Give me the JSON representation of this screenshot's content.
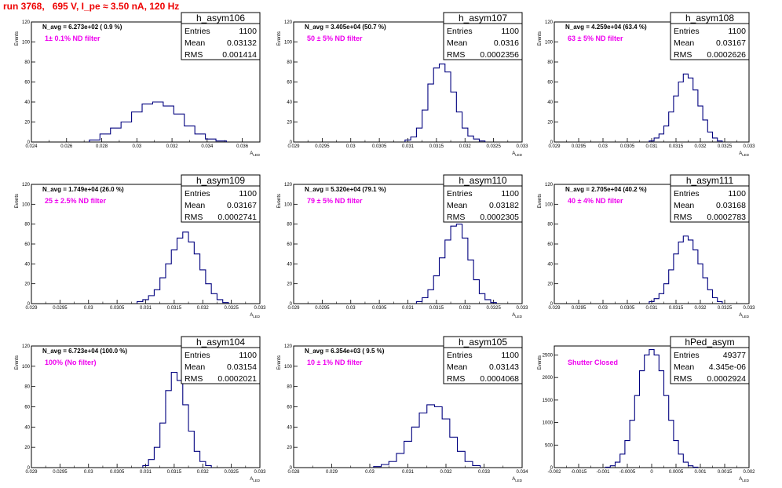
{
  "header": {
    "run_info": "run 3768,   695 V, I_pe ≈ 3.50 nA, 120 Hz"
  },
  "colors": {
    "histogram_line": "#00007f",
    "filter_text": "#ee00ee",
    "run_text": "#ee0000"
  },
  "chart_data": [
    {
      "type": "bar",
      "name": "h_asym106",
      "navg": "N_avg = 6.273e+02 ( 0.9 %)",
      "filter": "1± 0.1% ND filter",
      "xlabel": "A_LED",
      "ylabel": "Events",
      "xlim": [
        0.024,
        0.037
      ],
      "ylim": [
        0,
        120
      ],
      "x_ticks": [
        "0.024",
        "0.026",
        "0.028",
        "0.03",
        "0.032",
        "0.034",
        "0.036"
      ],
      "y_ticks": [
        "0",
        "20",
        "40",
        "60",
        "80",
        "100",
        "120"
      ],
      "stats": {
        "Entries": "1100",
        "Mean": "0.03132",
        "RMS": "0.001414"
      },
      "x": [
        0.0276,
        0.0282,
        0.0288,
        0.0294,
        0.03,
        0.0306,
        0.0312,
        0.0318,
        0.0324,
        0.033,
        0.0336,
        0.0342,
        0.0348
      ],
      "values": [
        2,
        8,
        14,
        20,
        30,
        38,
        40,
        36,
        28,
        16,
        8,
        3,
        1
      ]
    },
    {
      "type": "bar",
      "name": "h_asym107",
      "navg": "N_avg = 3.405e+04 (50.7 %)",
      "filter": "50 ± 5% ND filter",
      "xlabel": "A_LED",
      "ylabel": "Events",
      "xlim": [
        0.029,
        0.033
      ],
      "ylim": [
        0,
        120
      ],
      "x_ticks": [
        "0.029",
        "0.0295",
        "0.03",
        "0.0305",
        "0.031",
        "0.0315",
        "0.032",
        "0.0325",
        "0.033"
      ],
      "y_ticks": [
        "0",
        "20",
        "40",
        "60",
        "80",
        "100",
        "120"
      ],
      "stats": {
        "Entries": "1100",
        "Mean": "0.0316",
        "RMS": "0.0002356"
      },
      "x": [
        0.031,
        0.0311,
        0.0312,
        0.0313,
        0.0314,
        0.0315,
        0.0316,
        0.0317,
        0.0318,
        0.0319,
        0.032,
        0.0321,
        0.0322,
        0.0323
      ],
      "values": [
        2,
        5,
        14,
        32,
        58,
        74,
        78,
        70,
        50,
        30,
        14,
        6,
        3,
        1
      ]
    },
    {
      "type": "bar",
      "name": "h_asym108",
      "navg": "N_avg = 4.259e+04 (63.4 %)",
      "filter": "63 ± 5% ND filter",
      "xlabel": "A_LED",
      "ylabel": "Events",
      "xlim": [
        0.029,
        0.033
      ],
      "ylim": [
        0,
        120
      ],
      "x_ticks": [
        "0.029",
        "0.0295",
        "0.03",
        "0.0305",
        "0.031",
        "0.0315",
        "0.032",
        "0.0325",
        "0.033"
      ],
      "y_ticks": [
        "0",
        "20",
        "40",
        "60",
        "80",
        "100",
        "120"
      ],
      "stats": {
        "Entries": "1100",
        "Mean": "0.03167",
        "RMS": "0.0002626"
      },
      "x": [
        0.031,
        0.0311,
        0.0312,
        0.0313,
        0.0314,
        0.0315,
        0.0316,
        0.0317,
        0.0318,
        0.0319,
        0.032,
        0.0321,
        0.0322,
        0.0323,
        0.0324
      ],
      "values": [
        1,
        4,
        8,
        16,
        30,
        46,
        60,
        68,
        64,
        52,
        36,
        22,
        10,
        4,
        1
      ]
    },
    {
      "type": "bar",
      "name": "h_asym109",
      "navg": "N_avg = 1.749e+04 (26.0 %)",
      "filter": "25 ± 2.5% ND filter",
      "xlabel": "A_LED",
      "ylabel": "Events",
      "xlim": [
        0.029,
        0.033
      ],
      "ylim": [
        0,
        120
      ],
      "x_ticks": [
        "0.029",
        "0.0295",
        "0.03",
        "0.0305",
        "0.031",
        "0.0315",
        "0.032",
        "0.0325",
        "0.033"
      ],
      "y_ticks": [
        "0",
        "20",
        "40",
        "60",
        "80",
        "100",
        "120"
      ],
      "stats": {
        "Entries": "1100",
        "Mean": "0.03167",
        "RMS": "0.0002741"
      },
      "x": [
        0.0309,
        0.031,
        0.0311,
        0.0312,
        0.0313,
        0.0314,
        0.0315,
        0.0316,
        0.0317,
        0.0318,
        0.0319,
        0.032,
        0.0321,
        0.0322,
        0.0323,
        0.0324
      ],
      "values": [
        2,
        4,
        8,
        14,
        26,
        40,
        54,
        66,
        72,
        62,
        50,
        34,
        20,
        10,
        4,
        1
      ]
    },
    {
      "type": "bar",
      "name": "h_asym110",
      "navg": "N_avg = 5.320e+04 (79.1 %)",
      "filter": "79 ± 5% ND filter",
      "xlabel": "A_LED",
      "ylabel": "Events",
      "xlim": [
        0.029,
        0.033
      ],
      "ylim": [
        0,
        120
      ],
      "x_ticks": [
        "0.029",
        "0.0295",
        "0.03",
        "0.0305",
        "0.031",
        "0.0315",
        "0.032",
        "0.0325",
        "0.033"
      ],
      "y_ticks": [
        "0",
        "20",
        "40",
        "60",
        "80",
        "100",
        "120"
      ],
      "stats": {
        "Entries": "1100",
        "Mean": "0.03182",
        "RMS": "0.0002305"
      },
      "x": [
        0.0312,
        0.0313,
        0.0314,
        0.0315,
        0.0316,
        0.0317,
        0.0318,
        0.0319,
        0.032,
        0.0321,
        0.0322,
        0.0323,
        0.0324,
        0.0325
      ],
      "values": [
        2,
        6,
        14,
        28,
        46,
        64,
        78,
        80,
        66,
        44,
        24,
        10,
        4,
        1
      ]
    },
    {
      "type": "bar",
      "name": "h_asym111",
      "navg": "N_avg = 2.705e+04 (40.2 %)",
      "filter": "40 ± 4% ND filter",
      "xlabel": "A_LED",
      "ylabel": "Events",
      "xlim": [
        0.029,
        0.033
      ],
      "ylim": [
        0,
        120
      ],
      "x_ticks": [
        "0.029",
        "0.0295",
        "0.03",
        "0.0305",
        "0.031",
        "0.0315",
        "0.032",
        "0.0325",
        "0.033"
      ],
      "y_ticks": [
        "0",
        "20",
        "40",
        "60",
        "80",
        "100",
        "120"
      ],
      "stats": {
        "Entries": "1100",
        "Mean": "0.03168",
        "RMS": "0.0002783"
      },
      "x": [
        0.031,
        0.0311,
        0.0312,
        0.0313,
        0.0314,
        0.0315,
        0.0316,
        0.0317,
        0.0318,
        0.0319,
        0.032,
        0.0321,
        0.0322,
        0.0323,
        0.0324
      ],
      "values": [
        2,
        5,
        10,
        20,
        34,
        50,
        62,
        68,
        64,
        54,
        40,
        26,
        14,
        6,
        2
      ]
    },
    {
      "type": "bar",
      "name": "h_asym104",
      "navg": "N_avg = 6.723e+04 (100.0 %)",
      "filter": "100% (No filter)",
      "xlabel": "A_LED",
      "ylabel": "Events",
      "xlim": [
        0.029,
        0.033
      ],
      "ylim": [
        0,
        120
      ],
      "x_ticks": [
        "0.029",
        "0.0295",
        "0.03",
        "0.0305",
        "0.031",
        "0.0315",
        "0.032",
        "0.0325",
        "0.033"
      ],
      "y_ticks": [
        "0",
        "20",
        "40",
        "60",
        "80",
        "100",
        "120"
      ],
      "stats": {
        "Entries": "1100",
        "Mean": "0.03154",
        "RMS": "0.0002021"
      },
      "x": [
        0.031,
        0.0311,
        0.0312,
        0.0313,
        0.0314,
        0.0315,
        0.0316,
        0.0317,
        0.0318,
        0.0319,
        0.032,
        0.0321
      ],
      "values": [
        2,
        8,
        20,
        44,
        76,
        94,
        86,
        62,
        36,
        16,
        6,
        2
      ]
    },
    {
      "type": "bar",
      "name": "h_asym105",
      "navg": "N_avg = 6.354e+03 ( 9.5 %)",
      "filter": "10 ± 1% ND filter",
      "xlabel": "A_LED",
      "ylabel": "Events",
      "xlim": [
        0.028,
        0.034
      ],
      "ylim": [
        0,
        120
      ],
      "x_ticks": [
        "0.028",
        "0.029",
        "0.03",
        "0.031",
        "0.032",
        "0.033",
        "0.034"
      ],
      "y_ticks": [
        "0",
        "20",
        "40",
        "60",
        "80",
        "100",
        "120"
      ],
      "stats": {
        "Entries": "1100",
        "Mean": "0.03143",
        "RMS": "0.0004068"
      },
      "x": [
        0.0302,
        0.0304,
        0.0306,
        0.0308,
        0.031,
        0.0312,
        0.0314,
        0.0316,
        0.0318,
        0.032,
        0.0322,
        0.0324,
        0.0326,
        0.0328
      ],
      "values": [
        1,
        3,
        6,
        14,
        26,
        40,
        54,
        62,
        60,
        48,
        30,
        16,
        6,
        2
      ]
    },
    {
      "type": "bar",
      "name": "hPed_asym",
      "navg": "",
      "filter": "Shutter Closed",
      "xlabel": "A_LED",
      "ylabel": "Events",
      "xlim": [
        -0.002,
        0.002
      ],
      "ylim": [
        0,
        2700
      ],
      "x_ticks": [
        "-0.002",
        "-0.0015",
        "-0.001",
        "-0.0005",
        "0",
        "0.0005",
        "0.001",
        "0.0015",
        "0.002"
      ],
      "y_ticks": [
        "0",
        "500",
        "1000",
        "1500",
        "2000",
        "2500"
      ],
      "y_tick_values": [
        0,
        500,
        1000,
        1500,
        2000,
        2500
      ],
      "stats": {
        "Entries": "49377",
        "Mean": "4.345e-06",
        "RMS": "0.0002924"
      },
      "x": [
        -0.0009,
        -0.0008,
        -0.0007,
        -0.0006,
        -0.0005,
        -0.0004,
        -0.0003,
        -0.0002,
        -0.0001,
        0.0,
        0.0001,
        0.0002,
        0.0003,
        0.0004,
        0.0005,
        0.0006,
        0.0007,
        0.0008,
        0.0009
      ],
      "values": [
        10,
        40,
        120,
        300,
        600,
        1050,
        1600,
        2150,
        2500,
        2620,
        2500,
        2150,
        1600,
        1050,
        600,
        300,
        120,
        40,
        10
      ]
    }
  ]
}
